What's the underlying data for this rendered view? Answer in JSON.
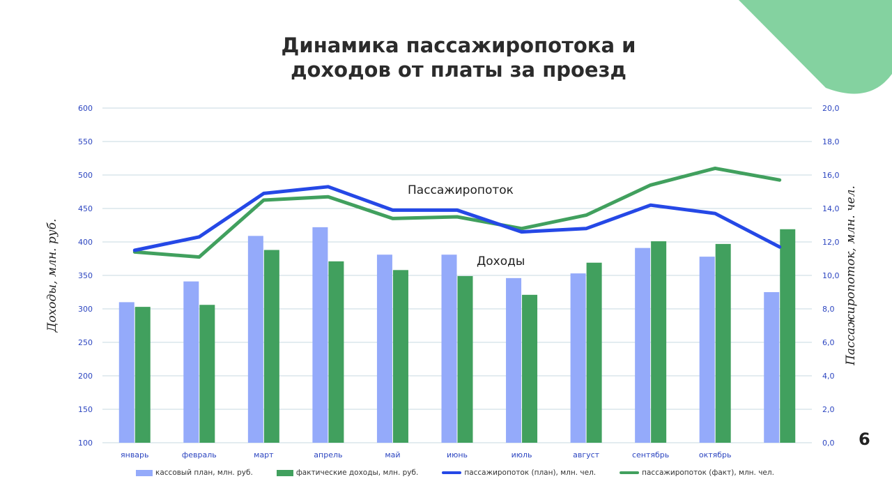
{
  "page_number": "6",
  "colors": {
    "plan_bar": "#94aafa",
    "fact_bar": "#41a05e",
    "plan_line": "#2548e6",
    "fact_line": "#41a05e",
    "corner": "#84d2a0",
    "grid": "#c7dae2",
    "tick": "#2c45c0"
  },
  "chart_data": {
    "type": "bar",
    "title": [
      "Динамика пассажиропотока и",
      "доходов от платы за проезд"
    ],
    "ylabel_left": "Доходы, млн. руб.",
    "ylabel_right": "Пассажиропоток, млн. чел.",
    "ylim_left": [
      100,
      600
    ],
    "ylim_right": [
      0,
      20
    ],
    "ticks_left": [
      "600",
      "550",
      "500",
      "450",
      "400",
      "350",
      "300",
      "250",
      "200",
      "150",
      "100"
    ],
    "ticks_right": [
      "20,0",
      "18,0",
      "16,0",
      "14,0",
      "12,0",
      "10,0",
      "8,0",
      "6,0",
      "4,0",
      "2,0",
      "0,0"
    ],
    "categories": [
      "январь",
      "февраль",
      "март",
      "апрель",
      "май",
      "июнь",
      "июль",
      "август",
      "сентябрь",
      "октябрь",
      ""
    ],
    "grid": true,
    "legend_position": "bottom",
    "series": [
      {
        "name": "кассовый план, млн. руб.",
        "kind": "bar",
        "axis": "left",
        "values": [
          310,
          341,
          409,
          422,
          381,
          381,
          346,
          353,
          391,
          378,
          325
        ]
      },
      {
        "name": "фактические доходы, млн. руб.",
        "kind": "bar",
        "axis": "left",
        "values": [
          303,
          306,
          388,
          371,
          358,
          349,
          321,
          369,
          401,
          397,
          419
        ]
      },
      {
        "name": "пассажиропоток (план), млн. чел.",
        "kind": "line",
        "axis": "right",
        "values": [
          11.5,
          12.3,
          14.9,
          15.3,
          13.9,
          13.9,
          12.6,
          12.8,
          14.2,
          13.7,
          11.7
        ]
      },
      {
        "name": "пассажиропоток (факт), млн. чел.",
        "kind": "line",
        "axis": "right",
        "values": [
          11.4,
          11.1,
          14.5,
          14.7,
          13.4,
          13.5,
          12.8,
          13.6,
          15.4,
          16.4,
          15.7
        ]
      }
    ],
    "annotations": [
      "Пассажиропоток",
      "Доходы"
    ]
  }
}
